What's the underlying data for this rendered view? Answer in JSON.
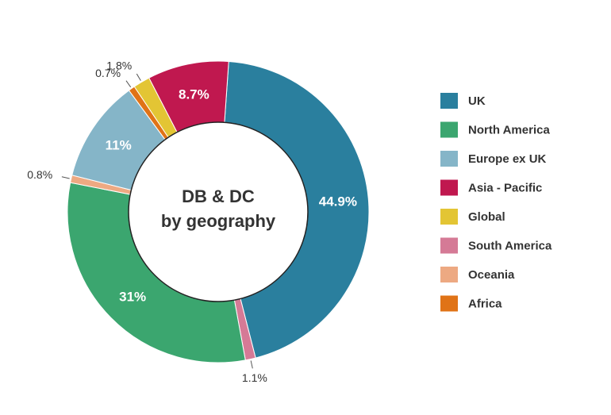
{
  "chart_data": {
    "type": "pie",
    "variant": "donut",
    "center_title": [
      "DB & DC",
      "by geography"
    ],
    "legend_position": "right",
    "slices": [
      {
        "name": "UK",
        "value": 44.9,
        "label": "44.9%",
        "color": "#2a7f9e",
        "label_style": "inside"
      },
      {
        "name": "South America",
        "value": 1.1,
        "label": "1.1%",
        "color": "#d57a96",
        "label_style": "outside"
      },
      {
        "name": "North America",
        "value": 31,
        "label": "31%",
        "color": "#3ba66f",
        "label_style": "inside"
      },
      {
        "name": "Oceania",
        "value": 0.8,
        "label": "0.8%",
        "color": "#eda982",
        "label_style": "outside"
      },
      {
        "name": "Europe ex UK",
        "value": 11,
        "label": "11%",
        "color": "#85b5c8",
        "label_style": "inside"
      },
      {
        "name": "Africa",
        "value": 0.7,
        "label": "0.7%",
        "color": "#e07317",
        "label_style": "outside"
      },
      {
        "name": "Global",
        "value": 1.8,
        "label": "1.8%",
        "color": "#e3c534",
        "label_style": "outside"
      },
      {
        "name": "Asia - Pacific",
        "value": 8.7,
        "label": "8.7%",
        "color": "#c0184f",
        "label_style": "inside"
      }
    ],
    "legend": [
      {
        "name": "UK",
        "color": "#2a7f9e"
      },
      {
        "name": "North America",
        "color": "#3ba66f"
      },
      {
        "name": "Europe ex UK",
        "color": "#85b5c8"
      },
      {
        "name": "Asia - Pacific",
        "color": "#c0184f"
      },
      {
        "name": "Global",
        "color": "#e3c534"
      },
      {
        "name": "South America",
        "color": "#d57a96"
      },
      {
        "name": "Oceania",
        "color": "#eda982"
      },
      {
        "name": "Africa",
        "color": "#e07317"
      }
    ]
  }
}
